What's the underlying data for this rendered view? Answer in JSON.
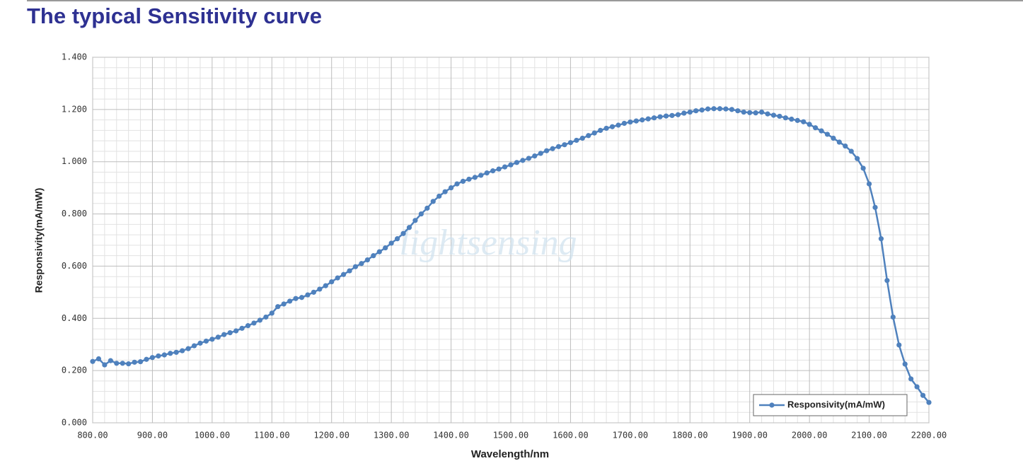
{
  "chart_data": {
    "type": "line",
    "title": "The typical Sensitivity curve",
    "xlabel": "Wavelength/nm",
    "ylabel": "Responsivity(mA/mW)",
    "watermark": "lightsensing",
    "legend": "lower right",
    "grid": true,
    "xlim": [
      800,
      2200
    ],
    "ylim": [
      0,
      1.4
    ],
    "xticks": [
      {
        "value": 800,
        "label": "800.00"
      },
      {
        "value": 900,
        "label": "900.00"
      },
      {
        "value": 1000,
        "label": "1000.00"
      },
      {
        "value": 1100,
        "label": "1100.00"
      },
      {
        "value": 1200,
        "label": "1200.00"
      },
      {
        "value": 1300,
        "label": "1300.00"
      },
      {
        "value": 1400,
        "label": "1400.00"
      },
      {
        "value": 1500,
        "label": "1500.00"
      },
      {
        "value": 1600,
        "label": "1600.00"
      },
      {
        "value": 1700,
        "label": "1700.00"
      },
      {
        "value": 1800,
        "label": "1800.00"
      },
      {
        "value": 1900,
        "label": "1900.00"
      },
      {
        "value": 2000,
        "label": "2000.00"
      },
      {
        "value": 2100,
        "label": "2100.00"
      },
      {
        "value": 2200,
        "label": "2200.00"
      }
    ],
    "yticks": [
      {
        "value": 0,
        "label": "0.000"
      },
      {
        "value": 0.2,
        "label": "0.200"
      },
      {
        "value": 0.4,
        "label": "0.400"
      },
      {
        "value": 0.6,
        "label": "0.600"
      },
      {
        "value": 0.8,
        "label": "0.800"
      },
      {
        "value": 1.0,
        "label": "1.000"
      },
      {
        "value": 1.2,
        "label": "1.200"
      },
      {
        "value": 1.4,
        "label": "1.400"
      }
    ],
    "x": [
      800,
      810,
      820,
      830,
      840,
      850,
      860,
      870,
      880,
      890,
      900,
      910,
      920,
      930,
      940,
      950,
      960,
      970,
      980,
      990,
      1000,
      1010,
      1020,
      1030,
      1040,
      1050,
      1060,
      1070,
      1080,
      1090,
      1100,
      1110,
      1120,
      1130,
      1140,
      1150,
      1160,
      1170,
      1180,
      1190,
      1200,
      1210,
      1220,
      1230,
      1240,
      1250,
      1260,
      1270,
      1280,
      1290,
      1300,
      1310,
      1320,
      1330,
      1340,
      1350,
      1360,
      1370,
      1380,
      1390,
      1400,
      1410,
      1420,
      1430,
      1440,
      1450,
      1460,
      1470,
      1480,
      1490,
      1500,
      1510,
      1520,
      1530,
      1540,
      1550,
      1560,
      1570,
      1580,
      1590,
      1600,
      1610,
      1620,
      1630,
      1640,
      1650,
      1660,
      1670,
      1680,
      1690,
      1700,
      1710,
      1720,
      1730,
      1740,
      1750,
      1760,
      1770,
      1780,
      1790,
      1800,
      1810,
      1820,
      1830,
      1840,
      1850,
      1860,
      1870,
      1880,
      1890,
      1900,
      1910,
      1920,
      1930,
      1940,
      1950,
      1960,
      1970,
      1980,
      1990,
      2000,
      2010,
      2020,
      2030,
      2040,
      2050,
      2060,
      2070,
      2080,
      2090,
      2100,
      2110,
      2120,
      2130,
      2140,
      2150,
      2160,
      2170,
      2180,
      2190,
      2200
    ],
    "series": [
      {
        "name": "Responsivity(mA/mW)",
        "color": "#4f81bd",
        "values": [
          0.235,
          0.245,
          0.222,
          0.238,
          0.228,
          0.228,
          0.226,
          0.232,
          0.234,
          0.243,
          0.25,
          0.256,
          0.26,
          0.266,
          0.27,
          0.276,
          0.284,
          0.295,
          0.305,
          0.313,
          0.32,
          0.328,
          0.338,
          0.345,
          0.352,
          0.362,
          0.372,
          0.382,
          0.393,
          0.405,
          0.42,
          0.445,
          0.455,
          0.466,
          0.476,
          0.48,
          0.49,
          0.5,
          0.512,
          0.525,
          0.54,
          0.555,
          0.568,
          0.582,
          0.598,
          0.61,
          0.624,
          0.64,
          0.655,
          0.67,
          0.688,
          0.705,
          0.725,
          0.748,
          0.775,
          0.8,
          0.822,
          0.848,
          0.868,
          0.885,
          0.9,
          0.915,
          0.925,
          0.933,
          0.94,
          0.948,
          0.957,
          0.965,
          0.972,
          0.98,
          0.988,
          0.997,
          1.005,
          1.013,
          1.022,
          1.032,
          1.042,
          1.05,
          1.058,
          1.065,
          1.073,
          1.082,
          1.09,
          1.1,
          1.11,
          1.12,
          1.128,
          1.134,
          1.14,
          1.147,
          1.152,
          1.156,
          1.16,
          1.164,
          1.168,
          1.172,
          1.175,
          1.177,
          1.18,
          1.186,
          1.19,
          1.195,
          1.198,
          1.202,
          1.203,
          1.203,
          1.202,
          1.2,
          1.195,
          1.19,
          1.188,
          1.187,
          1.19,
          1.183,
          1.178,
          1.174,
          1.168,
          1.163,
          1.158,
          1.153,
          1.143,
          1.13,
          1.118,
          1.105,
          1.09,
          1.075,
          1.06,
          1.04,
          1.012,
          0.975,
          0.915,
          0.825,
          0.705,
          0.545,
          0.405,
          0.298,
          0.225,
          0.168,
          0.138,
          0.105,
          0.078
        ]
      }
    ]
  }
}
